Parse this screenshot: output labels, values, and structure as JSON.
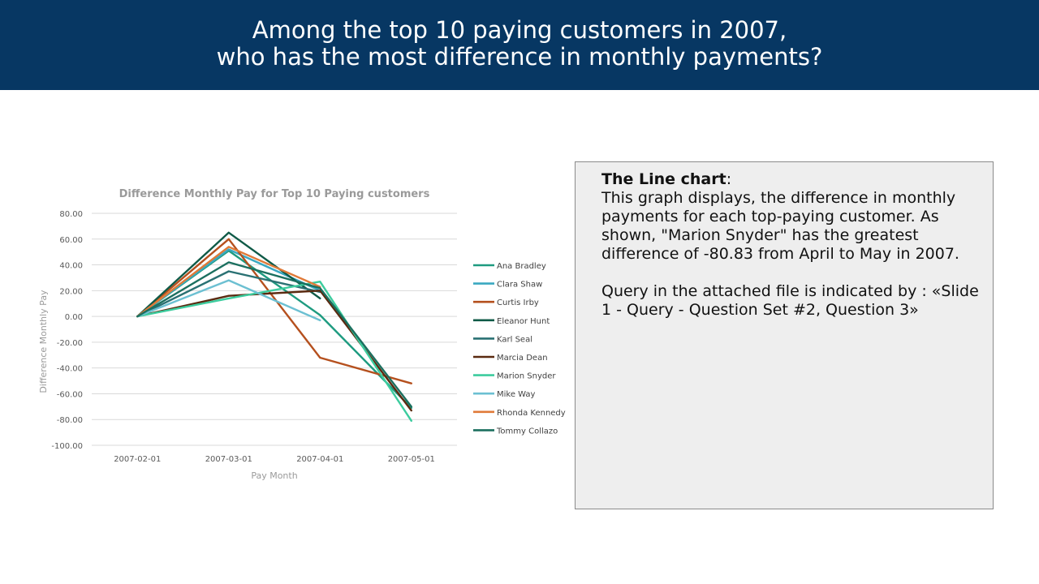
{
  "header": {
    "title_line1": "Among the top 10 paying customers in 2007,",
    "title_line2": "who has the most difference in monthly payments?"
  },
  "panel": {
    "heading": "The Line chart",
    "heading_suffix": ":",
    "description": "This graph displays, the difference in monthly payments for each top-paying customer. As shown, \"Marion Snyder\" has the greatest difference of -80.83 from April to May in 2007.",
    "query_note": "Query in the attached file is indicated by : «Slide 1 - Query - Question Set #2, Question 3»"
  },
  "chart_data": {
    "type": "line",
    "title": "Difference Monthly Pay for Top 10 Paying customers",
    "xlabel": "Pay Month",
    "ylabel": "Difference Monthly Pay",
    "categories": [
      "2007-02-01",
      "2007-03-01",
      "2007-04-01",
      "2007-05-01"
    ],
    "ylim": [
      -100,
      80
    ],
    "yticks": [
      80,
      60,
      40,
      20,
      0,
      -20,
      -40,
      -60,
      -80,
      -100
    ],
    "ytick_labels": [
      "80.00",
      "60.00",
      "40.00",
      "20.00",
      "0.00",
      "-20.00",
      "-40.00",
      "-60.00",
      "-80.00",
      "-100.00"
    ],
    "grid": true,
    "legend_position": "right",
    "series": [
      {
        "name": "Ana Bradley",
        "color": "#1e9b80",
        "values": [
          0,
          51,
          1,
          -71
        ]
      },
      {
        "name": "Clara Shaw",
        "color": "#3aa8c1",
        "values": [
          0,
          52,
          20,
          null
        ]
      },
      {
        "name": "Curtis Irby",
        "color": "#b5501e",
        "values": [
          0,
          60,
          -32,
          -52
        ]
      },
      {
        "name": "Eleanor Hunt",
        "color": "#0f5a47",
        "values": [
          0,
          65,
          14,
          null
        ]
      },
      {
        "name": "Karl Seal",
        "color": "#2a7173",
        "values": [
          0,
          35,
          19,
          null
        ]
      },
      {
        "name": "Marcia Dean",
        "color": "#5a2a10",
        "values": [
          0,
          16,
          20,
          -73
        ]
      },
      {
        "name": "Marion Snyder",
        "color": "#3ccc9e",
        "values": [
          0,
          14,
          27,
          -81
        ]
      },
      {
        "name": "Mike Way",
        "color": "#6cc0d2",
        "values": [
          0,
          28,
          -3,
          null
        ]
      },
      {
        "name": "Rhonda Kennedy",
        "color": "#e07a38",
        "values": [
          0,
          54,
          23,
          null
        ]
      },
      {
        "name": "Tommy Collazo",
        "color": "#1b6f5f",
        "values": [
          0,
          42,
          22,
          -70
        ]
      }
    ]
  }
}
